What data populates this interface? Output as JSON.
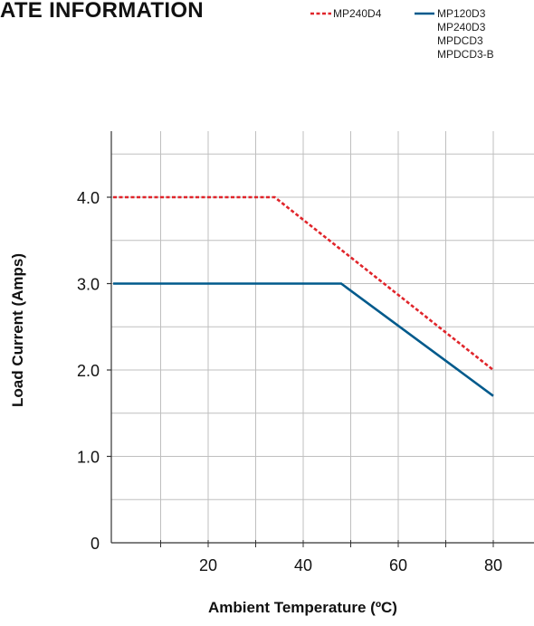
{
  "title": "ATE INFORMATION",
  "colors": {
    "series_1": "#e0252b",
    "series_2": "#005a8c",
    "grid": "#bfbfbf",
    "axis": "#333333"
  },
  "chart_data": {
    "type": "line",
    "xlabel": "Ambient Temperature (ºC)",
    "ylabel": "Load Current (Amps)",
    "xlim": [
      0,
      80
    ],
    "ylim": [
      0,
      4.6
    ],
    "x_ticks": [
      20,
      40,
      60,
      80
    ],
    "x_tick_labels": [
      "20",
      "40",
      "60",
      "80"
    ],
    "y_ticks": [
      0,
      1,
      2,
      3,
      4
    ],
    "y_tick_labels": [
      "0",
      "1.0",
      "2.0",
      "3.0",
      "4.0"
    ],
    "grid": true,
    "legend_position": "top-right",
    "series": [
      {
        "name": "MP240D4",
        "style": "dashed",
        "color": "#e0252b",
        "x": [
          0,
          34,
          80
        ],
        "y": [
          4.0,
          4.0,
          2.0
        ]
      },
      {
        "name": "MP120D3\nMP240D3\nMPDCD3\nMPDCD3-B",
        "legend_lines": [
          "MP120D3",
          "MP240D3",
          "MPDCD3",
          "MPDCD3-B"
        ],
        "style": "solid",
        "color": "#005a8c",
        "x": [
          0,
          48,
          80
        ],
        "y": [
          3.0,
          3.0,
          1.7
        ]
      }
    ]
  }
}
